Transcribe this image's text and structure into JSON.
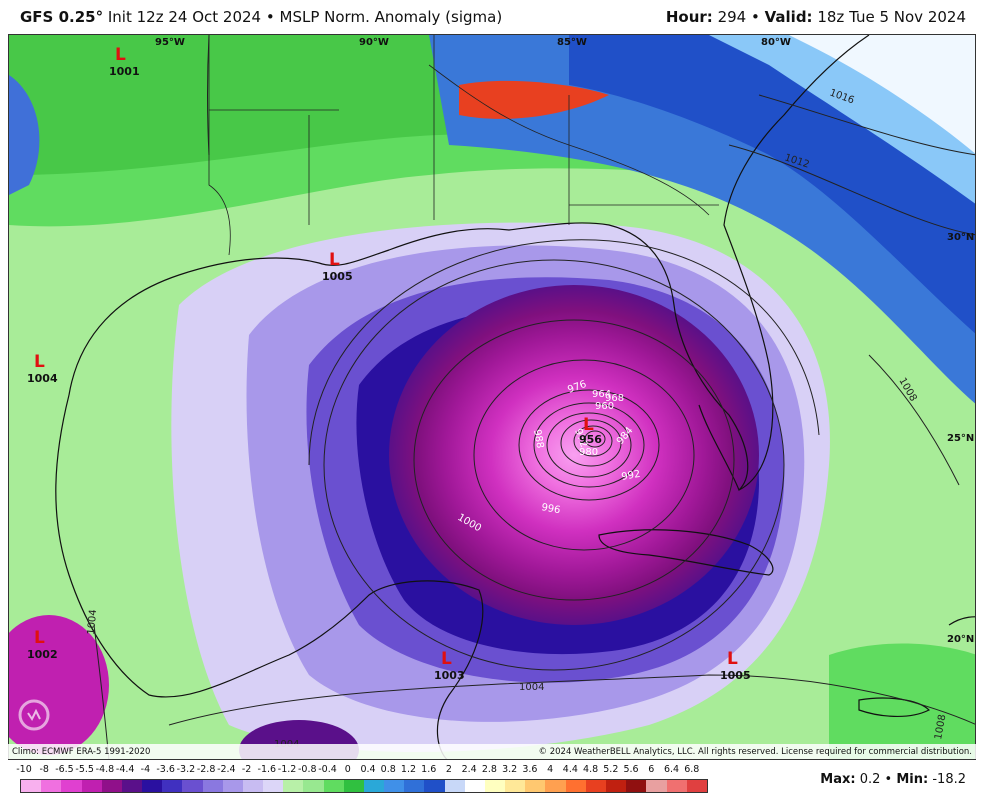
{
  "header": {
    "model": "GFS 0.25",
    "init": "Init 12z 24 Oct 2024",
    "product": "MSLP Norm. Anomaly (sigma)",
    "hour_label": "Hour:",
    "hour_value": "294",
    "valid_label": "Valid:",
    "valid_value": "18z Tue 5 Nov 2024"
  },
  "map": {
    "longitudes": [
      "95°W",
      "90°W",
      "85°W",
      "80°W"
    ],
    "latitudes": [
      "30°N",
      "25°N",
      "20°N"
    ],
    "lows": [
      {
        "label": "L",
        "value": "1001"
      },
      {
        "label": "L",
        "value": "1005"
      },
      {
        "label": "L",
        "value": "1004"
      },
      {
        "label": "L",
        "value": "956"
      },
      {
        "label": "L",
        "value": "1002"
      },
      {
        "label": "L",
        "value": "1003"
      },
      {
        "label": "L",
        "value": "1005"
      }
    ],
    "isobars": [
      "1016",
      "1012",
      "1008",
      "1004",
      "1000",
      "996",
      "992",
      "988",
      "984",
      "980",
      "976",
      "972",
      "968",
      "964",
      "960",
      "1004",
      "1004",
      "1008"
    ]
  },
  "footer": {
    "climo": "Climo: ECMWF ERA-5 1991-2020",
    "copyright": "© 2024 WeatherBELL Analytics, LLC. All rights reserved. License required for commercial distribution."
  },
  "legend": {
    "ticks": [
      "-10",
      "-8",
      "-6.5",
      "-5.5",
      "-4.8",
      "-4.4",
      "-4",
      "-3.6",
      "-3.2",
      "-2.8",
      "-2.4",
      "-2",
      "-1.6",
      "-1.2",
      "-0.8",
      "-0.4",
      "0",
      "0.4",
      "0.8",
      "1.2",
      "1.6",
      "2",
      "2.4",
      "2.8",
      "3.2",
      "3.6",
      "4",
      "4.4",
      "4.8",
      "5.2",
      "5.6",
      "6",
      "6.4",
      "6.8"
    ],
    "colors": [
      "#f8b0ee",
      "#f070e0",
      "#e040d0",
      "#c020b0",
      "#90108a",
      "#5a108a",
      "#2a10a0",
      "#4030c0",
      "#6a50d0",
      "#8a78e0",
      "#a898ea",
      "#c8bcf2",
      "#dcd6f8",
      "#b8f0a8",
      "#98e890",
      "#60dc60",
      "#30c040",
      "#2aa8d8",
      "#4090e8",
      "#3070d8",
      "#2050c8",
      "#c8d8f8",
      "#ffffff",
      "#ffffc0",
      "#ffe898",
      "#ffc870",
      "#ffa050",
      "#ff7030",
      "#e84020",
      "#c02010",
      "#901010",
      "#e8a0a0",
      "#f07070",
      "#e04040"
    ],
    "max_label": "Max:",
    "max_value": "0.2",
    "min_label": "Min:",
    "min_value": "-18.2"
  }
}
